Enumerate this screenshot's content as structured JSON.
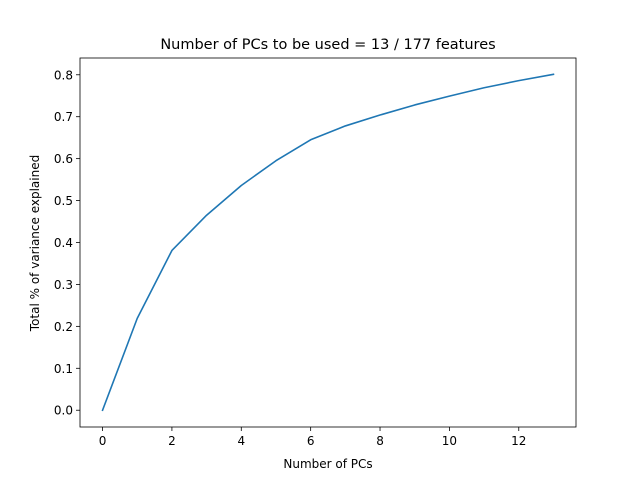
{
  "chart_data": {
    "type": "line",
    "title": "Number of PCs to be used = 13 / 177 features",
    "xlabel": "Number of PCs",
    "ylabel": "Total % of variance explained",
    "xlim": [
      -0.65,
      13.65
    ],
    "ylim": [
      -0.04,
      0.84
    ],
    "xticks": [
      0,
      2,
      4,
      6,
      8,
      10,
      12
    ],
    "yticks": [
      0.0,
      0.1,
      0.2,
      0.3,
      0.4,
      0.5,
      0.6,
      0.7,
      0.8
    ],
    "xtick_labels": [
      "0",
      "2",
      "4",
      "6",
      "8",
      "10",
      "12"
    ],
    "ytick_labels": [
      "0.0",
      "0.1",
      "0.2",
      "0.3",
      "0.4",
      "0.5",
      "0.6",
      "0.7",
      "0.8"
    ],
    "grid": false,
    "legend": "none",
    "color": "#1f77b4",
    "x": [
      0,
      1,
      2,
      3,
      4,
      5,
      6,
      7,
      8,
      9,
      10,
      11,
      12,
      13
    ],
    "series": [
      {
        "values": [
          0.0,
          0.219,
          0.381,
          0.465,
          0.536,
          0.595,
          0.645,
          0.678,
          0.704,
          0.728,
          0.749,
          0.769,
          0.786,
          0.801
        ]
      }
    ]
  }
}
